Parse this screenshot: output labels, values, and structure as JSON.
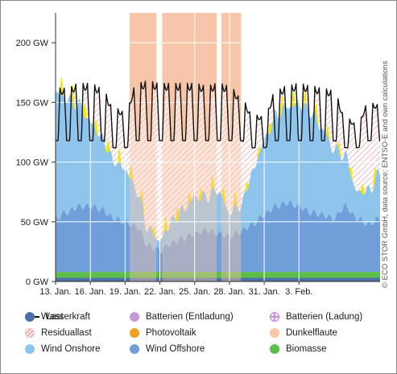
{
  "chart_data": {
    "type": "area",
    "ylim": [
      0,
      225
    ],
    "y_ticks": [
      {
        "value": 0,
        "label": "0 GW"
      },
      {
        "value": 50,
        "label": "50 GW"
      },
      {
        "value": 100,
        "label": "100 GW"
      },
      {
        "value": 150,
        "label": "150 GW"
      },
      {
        "value": 200,
        "label": "200 GW"
      }
    ],
    "x_range": [
      13,
      41
    ],
    "x_ticks": [
      {
        "day": 13,
        "label": "13. Jan."
      },
      {
        "day": 16,
        "label": "16. Jan."
      },
      {
        "day": 19,
        "label": "19. Jan."
      },
      {
        "day": 22,
        "label": "22. Jan."
      },
      {
        "day": 25,
        "label": "25. Jan."
      },
      {
        "day": 28,
        "label": "28. Jan."
      },
      {
        "day": 31,
        "label": "31. Jan."
      },
      {
        "day": 34,
        "label": "3. Feb."
      }
    ],
    "dunkelflaute_periods": [
      [
        19.4,
        21.7
      ],
      [
        22.2,
        26.9
      ],
      [
        27.3,
        29.0
      ]
    ],
    "daily": {
      "days": [
        13,
        14,
        15,
        16,
        17,
        18,
        19,
        20,
        21,
        22,
        23,
        24,
        25,
        26,
        27,
        28,
        29,
        30,
        31,
        32,
        33,
        34,
        35,
        36,
        37,
        38,
        39,
        40,
        41
      ],
      "wasserkraft": [
        3,
        3,
        3,
        3,
        3,
        3,
        3,
        3,
        3,
        3,
        3,
        3,
        3,
        3,
        3,
        3,
        3,
        3,
        3,
        3,
        3,
        3,
        3,
        3,
        3,
        3,
        3,
        3,
        3
      ],
      "biomasse": [
        5,
        5,
        5,
        5,
        5,
        5,
        5,
        5,
        5,
        5,
        5,
        5,
        5,
        5,
        5,
        5,
        5,
        5,
        5,
        5,
        5,
        5,
        5,
        5,
        5,
        5,
        5,
        5,
        5
      ],
      "wind_offshore": [
        45,
        50,
        55,
        55,
        52,
        45,
        42,
        38,
        22,
        18,
        24,
        28,
        32,
        35,
        32,
        30,
        34,
        40,
        48,
        55,
        58,
        55,
        50,
        48,
        45,
        55,
        45,
        40,
        45
      ],
      "wind_onshore": [
        105,
        95,
        85,
        70,
        60,
        48,
        44,
        30,
        14,
        8,
        18,
        24,
        30,
        28,
        36,
        20,
        22,
        44,
        62,
        76,
        80,
        86,
        84,
        72,
        58,
        42,
        22,
        28,
        38
      ],
      "last_base": [
        118,
        118,
        118,
        118,
        118,
        112,
        112,
        118,
        118,
        118,
        118,
        118,
        118,
        118,
        118,
        118,
        118,
        112,
        112,
        118,
        118,
        118,
        118,
        118,
        118,
        112,
        112,
        118,
        118
      ],
      "last_peak": [
        162,
        162,
        166,
        166,
        162,
        146,
        142,
        166,
        168,
        166,
        166,
        166,
        166,
        164,
        166,
        164,
        154,
        140,
        138,
        160,
        164,
        166,
        164,
        162,
        160,
        138,
        132,
        150,
        148
      ],
      "pv_peak": [
        14,
        14,
        13,
        12,
        10,
        10,
        12,
        11,
        9,
        8,
        14,
        10,
        9,
        10,
        12,
        11,
        8,
        6,
        7,
        10,
        13,
        12,
        13,
        10,
        8,
        9,
        8,
        10,
        12
      ]
    },
    "series": [
      {
        "name": "Last",
        "color": "#111111"
      },
      {
        "name": "Batterien (Entladung)",
        "color": "#c49ad5"
      },
      {
        "name": "Batterien (Ladung)",
        "color": "#b882c9"
      },
      {
        "name": "Residuallast",
        "color": "#f1a3a3"
      },
      {
        "name": "Photovoltaik",
        "color": "#f2e600"
      },
      {
        "name": "Dunkelflaute",
        "color": "#f7c5a8"
      },
      {
        "name": "Wind Onshore",
        "color": "#8fc5ec"
      },
      {
        "name": "Wind Offshore",
        "color": "#6f9ed8"
      },
      {
        "name": "Biomasse",
        "color": "#5cbd4a"
      },
      {
        "name": "Wasserkraft",
        "color": "#4e6ea8"
      }
    ],
    "legend": [
      {
        "label": "Last",
        "swatch": "line",
        "color": "#111111"
      },
      {
        "label": "Batterien (Entladung)",
        "swatch": "dot",
        "color": "#c49ad5"
      },
      {
        "label": "Batterien (Ladung)",
        "swatch": "cross",
        "color": "#b882c9"
      },
      {
        "label": "Residuallast",
        "swatch": "hatch",
        "color": "#f1a3a3"
      },
      {
        "label": "Photovoltaik",
        "swatch": "dot",
        "color": "#f0a020"
      },
      {
        "label": "Dunkelflaute",
        "swatch": "dot",
        "color": "#f7c5a8"
      },
      {
        "label": "Wind Onshore",
        "swatch": "dot",
        "color": "#8fc5ec"
      },
      {
        "label": "Wind Offshore",
        "swatch": "dot",
        "color": "#6f9ed8"
      },
      {
        "label": "Biomasse",
        "swatch": "dot",
        "color": "#5cbd4a"
      },
      {
        "label": "Wasserkraft",
        "swatch": "dot",
        "color": "#4e6ea8"
      }
    ],
    "source_note": "© ECO STOR GmbH, data source: ENTSO-E and own calculations"
  }
}
